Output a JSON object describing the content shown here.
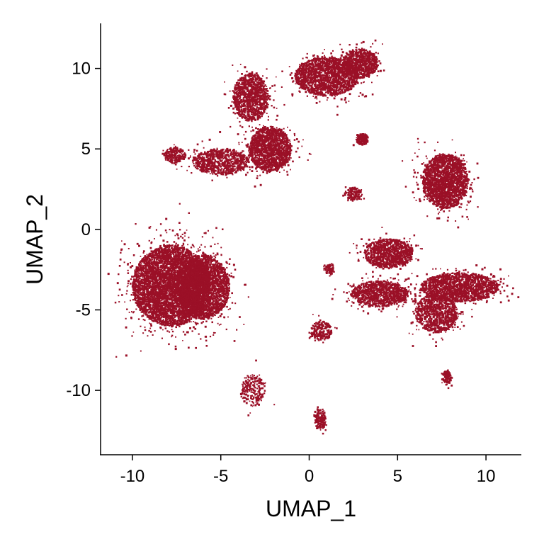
{
  "chart_data": {
    "type": "scatter",
    "title": "",
    "xlabel": "UMAP_1",
    "ylabel": "UMAP_2",
    "xlim": [
      -11.8,
      12.0
    ],
    "ylim": [
      -14.0,
      12.8
    ],
    "xticks": [
      -10,
      -5,
      0,
      5,
      10
    ],
    "yticks": [
      -10,
      -5,
      0,
      5,
      10
    ],
    "xtick_labels": [
      "-10",
      "-5",
      "0",
      "5",
      "10"
    ],
    "ytick_labels": [
      "-10",
      "-5",
      "0",
      "5",
      "10"
    ],
    "grid": false,
    "legend": "none",
    "point_color": "#9B1027",
    "series": [
      {
        "clusters": [
          {
            "cx": -7.8,
            "cy": -3.5,
            "rx": 2.2,
            "ry": 2.5,
            "density": 1.0
          },
          {
            "cx": -6.0,
            "cy": -3.6,
            "rx": 1.5,
            "ry": 2.0,
            "density": 0.9
          },
          {
            "cx": -3.2,
            "cy": -10.0,
            "rx": 0.7,
            "ry": 1.0,
            "density": 0.35
          },
          {
            "cx": 1.0,
            "cy": 9.5,
            "rx": 1.8,
            "ry": 1.2,
            "density": 0.9
          },
          {
            "cx": 2.9,
            "cy": 10.3,
            "rx": 1.0,
            "ry": 0.9,
            "density": 1.0
          },
          {
            "cx": -3.3,
            "cy": 8.2,
            "rx": 1.0,
            "ry": 1.5,
            "density": 0.8
          },
          {
            "cx": -2.2,
            "cy": 5.0,
            "rx": 1.2,
            "ry": 1.4,
            "density": 1.0
          },
          {
            "cx": -5.0,
            "cy": 4.2,
            "rx": 1.6,
            "ry": 0.8,
            "density": 0.7
          },
          {
            "cx": -7.6,
            "cy": 4.6,
            "rx": 0.6,
            "ry": 0.5,
            "density": 0.8
          },
          {
            "cx": 3.0,
            "cy": 5.6,
            "rx": 0.35,
            "ry": 0.35,
            "density": 0.8
          },
          {
            "cx": 2.5,
            "cy": 2.2,
            "rx": 0.5,
            "ry": 0.4,
            "density": 0.7
          },
          {
            "cx": 7.7,
            "cy": 3.0,
            "rx": 1.3,
            "ry": 1.7,
            "density": 1.0
          },
          {
            "cx": 4.5,
            "cy": -1.5,
            "rx": 1.4,
            "ry": 0.9,
            "density": 0.9
          },
          {
            "cx": 4.0,
            "cy": -4.0,
            "rx": 1.6,
            "ry": 0.8,
            "density": 0.9
          },
          {
            "cx": 8.5,
            "cy": -3.6,
            "rx": 2.2,
            "ry": 0.9,
            "density": 0.9
          },
          {
            "cx": 7.2,
            "cy": -5.2,
            "rx": 1.2,
            "ry": 1.2,
            "density": 0.7
          },
          {
            "cx": 0.7,
            "cy": -6.3,
            "rx": 0.6,
            "ry": 0.6,
            "density": 0.7
          },
          {
            "cx": 0.6,
            "cy": -11.8,
            "rx": 0.35,
            "ry": 0.7,
            "density": 0.7
          },
          {
            "cx": 7.8,
            "cy": -9.2,
            "rx": 0.25,
            "ry": 0.45,
            "density": 0.5
          },
          {
            "cx": 1.2,
            "cy": -2.5,
            "rx": 0.3,
            "ry": 0.3,
            "density": 0.3
          }
        ]
      }
    ]
  }
}
